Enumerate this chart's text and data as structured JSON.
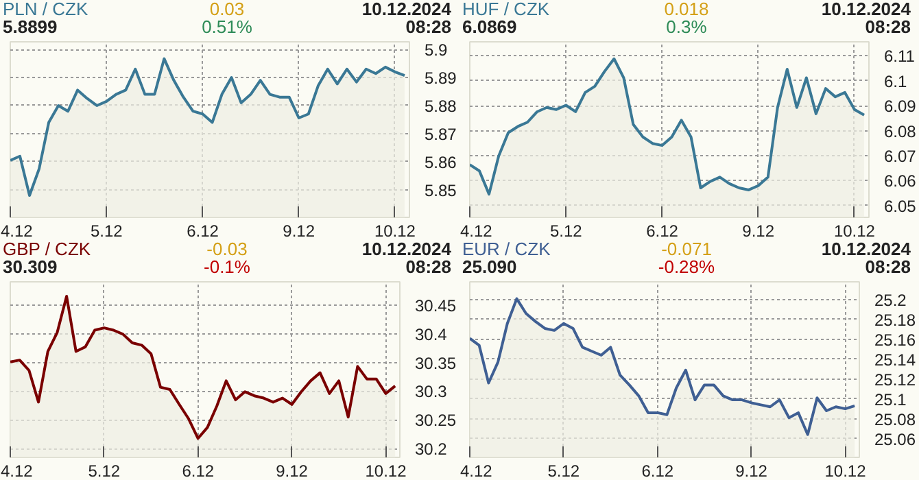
{
  "chart_data": [
    {
      "type": "area",
      "title": "PLN / CZK",
      "annotations": [
        "5.8899",
        "0.03",
        "0.51%",
        "10.12.2024",
        "08:28"
      ],
      "categories": [
        "4.12",
        null,
        null,
        null,
        null,
        null,
        null,
        null,
        null,
        null,
        "5.12",
        null,
        null,
        null,
        null,
        null,
        null,
        null,
        null,
        null,
        "6.12",
        null,
        null,
        null,
        null,
        null,
        null,
        null,
        null,
        null,
        "9.12",
        null,
        null,
        null,
        null,
        null,
        null,
        null,
        null,
        null,
        "10.12",
        null
      ],
      "series": [
        {
          "color": "#3a7895",
          "values": [
            5.8605,
            5.862,
            5.848,
            5.8575,
            5.874,
            5.88,
            5.878,
            5.8855,
            5.8825,
            5.88,
            5.8815,
            5.884,
            5.8855,
            5.893,
            5.884,
            5.884,
            5.8967,
            5.889,
            5.883,
            5.878,
            5.877,
            5.874,
            5.884,
            5.89,
            5.881,
            5.884,
            5.889,
            5.884,
            5.883,
            5.883,
            5.8756,
            5.877,
            5.887,
            5.893,
            5.8877,
            5.893,
            5.8884,
            5.893,
            5.8914,
            5.8937,
            5.892,
            5.8907
          ]
        }
      ],
      "ylim": [
        5.8402,
        5.9027
      ],
      "yticks": [
        5.85,
        5.86,
        5.87,
        5.88,
        5.89,
        5.9
      ],
      "grid": true
    },
    {
      "type": "area",
      "title": "HUF / CZK",
      "annotations": [
        "6.0869",
        "0.018",
        "0.3%",
        "10.12.2024",
        "08:28"
      ],
      "categories": [
        "4.12",
        null,
        null,
        null,
        null,
        null,
        null,
        null,
        null,
        null,
        "5.12",
        null,
        null,
        null,
        null,
        null,
        null,
        null,
        null,
        null,
        "6.12",
        null,
        null,
        null,
        null,
        null,
        null,
        null,
        null,
        null,
        "9.12",
        null,
        null,
        null,
        null,
        null,
        null,
        null,
        null,
        null,
        "10.12",
        null
      ],
      "series": [
        {
          "color": "#3a7895",
          "values": [
            6.0664,
            6.0639,
            6.0546,
            6.0698,
            6.0792,
            6.0817,
            6.0834,
            6.0876,
            6.0893,
            6.0885,
            6.0902,
            6.0876,
            6.0953,
            6.0978,
            6.1037,
            6.1088,
            6.1012,
            6.0825,
            6.0775,
            6.0749,
            6.0741,
            6.0775,
            6.0842,
            6.0775,
            6.0571,
            6.0597,
            6.0614,
            6.0588,
            6.0571,
            6.0563,
            6.058,
            6.0614,
            6.0893,
            6.1046,
            6.0893,
            6.1012,
            6.0868,
            6.0969,
            6.0936,
            6.0953,
            6.0885,
            6.0863
          ]
        }
      ],
      "ylim": [
        6.0453,
        6.1156
      ],
      "yticks": [
        6.05,
        6.06,
        6.07,
        6.08,
        6.09,
        6.1,
        6.11
      ],
      "grid": true
    },
    {
      "type": "area",
      "title": "GBP / CZK",
      "annotations": [
        "30.309",
        "-0.03",
        "-0.1%",
        "10.12.2024",
        "08:28"
      ],
      "categories": [
        "4.12",
        null,
        null,
        null,
        null,
        null,
        null,
        null,
        null,
        null,
        "5.12",
        null,
        null,
        null,
        null,
        null,
        null,
        null,
        null,
        null,
        "6.12",
        null,
        null,
        null,
        null,
        null,
        null,
        null,
        null,
        null,
        "9.12",
        null,
        null,
        null,
        null,
        null,
        null,
        null,
        null,
        null,
        "10.12",
        null
      ],
      "series": [
        {
          "color": "#7a0000",
          "values": [
            30.351,
            30.354,
            30.336,
            30.281,
            30.369,
            30.402,
            30.465,
            30.369,
            30.377,
            30.406,
            30.41,
            30.406,
            30.399,
            30.384,
            30.38,
            30.365,
            30.307,
            30.303,
            30.277,
            30.252,
            30.218,
            30.237,
            30.274,
            30.318,
            30.285,
            30.299,
            30.292,
            30.288,
            30.281,
            30.288,
            30.277,
            30.299,
            30.318,
            30.332,
            30.296,
            30.318,
            30.255,
            30.343,
            30.321,
            30.321,
            30.296,
            30.309
          ]
        }
      ],
      "ylim": [
        30.185,
        30.49
      ],
      "yticks": [
        30.2,
        30.25,
        30.3,
        30.35,
        30.4,
        30.45
      ],
      "grid": true
    },
    {
      "type": "area",
      "title": "EUR / CZK",
      "annotations": [
        "25.090",
        "-0.071",
        "-0.28%",
        "10.12.2024",
        "08:28"
      ],
      "categories": [
        "4.12",
        null,
        null,
        null,
        null,
        null,
        null,
        null,
        null,
        null,
        "5.12",
        null,
        null,
        null,
        null,
        null,
        null,
        null,
        null,
        null,
        "6.12",
        null,
        null,
        null,
        null,
        null,
        null,
        null,
        null,
        null,
        "9.12",
        null,
        null,
        null,
        null,
        null,
        null,
        null,
        null,
        null,
        "10.12",
        null
      ],
      "series": [
        {
          "color": "#3f5f93",
          "values": [
            25.161,
            25.154,
            25.116,
            25.137,
            25.176,
            25.201,
            25.186,
            25.178,
            25.171,
            25.169,
            25.176,
            25.171,
            25.152,
            25.148,
            25.144,
            25.152,
            25.124,
            25.114,
            25.103,
            25.086,
            25.086,
            25.084,
            25.111,
            25.129,
            25.099,
            25.114,
            25.114,
            25.103,
            25.099,
            25.099,
            25.096,
            25.094,
            25.092,
            25.099,
            25.081,
            25.086,
            25.064,
            25.101,
            25.088,
            25.092,
            25.09,
            25.093
          ]
        }
      ],
      "ylim": [
        25.041,
        25.218
      ],
      "yticks": [
        25.06,
        25.08,
        25.1,
        25.12,
        25.14,
        25.16,
        25.18,
        25.2
      ],
      "grid": true
    }
  ]
}
